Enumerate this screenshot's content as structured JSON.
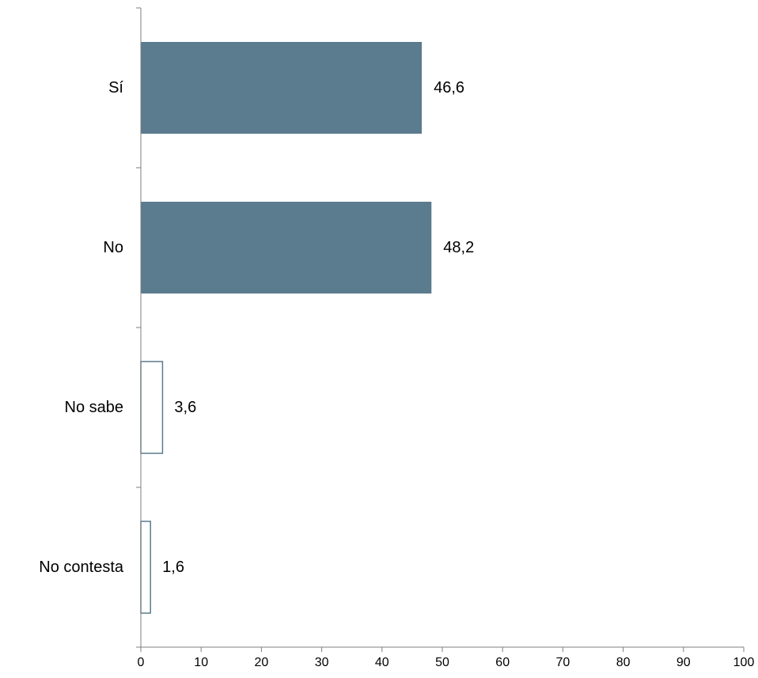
{
  "chart_data": {
    "type": "bar",
    "orientation": "horizontal",
    "categories": [
      "Sí",
      "No",
      "No sabe",
      "No contesta"
    ],
    "values": [
      46.6,
      48.2,
      3.6,
      1.6
    ],
    "value_labels": [
      "46,6",
      "48,2",
      "3,6",
      "1,6"
    ],
    "title": "",
    "xlabel": "",
    "ylabel": "",
    "xlim": [
      0,
      100
    ],
    "xticks": [
      0,
      10,
      20,
      30,
      40,
      50,
      60,
      70,
      80,
      90,
      100
    ],
    "grid": false,
    "legend": "none",
    "bar_styles": [
      "filled",
      "filled",
      "outline",
      "outline"
    ],
    "colors": {
      "fill": "#5b7b8e",
      "outline": "#5b7b8e",
      "axis": "#7f7f7f"
    }
  }
}
